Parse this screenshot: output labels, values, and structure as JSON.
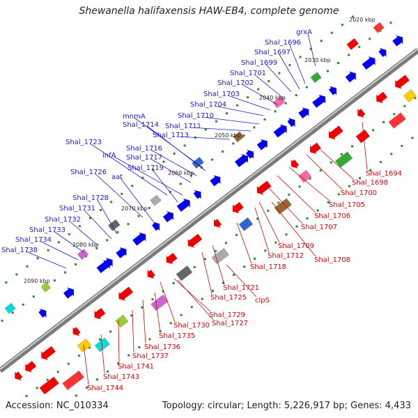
{
  "title": "Shewanella halifaxensis HAW-EB4, complete genome",
  "footer": {
    "accession": "Accession: NC_010334",
    "summary": "Topology: circular; Length: 5,226,917 bp; Genes: 4,433"
  },
  "colors": {
    "backbone": "#8c8c8c",
    "forward_label": "#1a1acc",
    "reverse_label": "#d60000",
    "tick": "#2a8a2a",
    "forward_gene": "#0000ee",
    "reverse_gene": "#ee0000"
  },
  "ticks": [
    "2020 kbp",
    "2030 kbp",
    "2040 kbp",
    "2050 kbp",
    "2060 kbp",
    "2070 kbp",
    "2080 kbp",
    "2090 kbp"
  ],
  "forward_labels": [
    "grxA",
    "Shal_1696",
    "Shal_1697",
    "Shal_1699",
    "Shal_1701",
    "Shal_1702",
    "Shal_1703",
    "Shal_1704",
    "mnmA",
    "Shal_1714",
    "Shal_1710",
    "Shal_1711",
    "Shal_1713",
    "Shal_1723",
    "Shal_1716",
    "infA",
    "Shal_1717",
    "Shal_1719",
    "Shal_1726",
    "aat",
    "Shal_1728",
    "Shal_1731",
    "Shal_1732",
    "Shal_1733",
    "Shal_1734",
    "Shal_1738"
  ],
  "reverse_labels": [
    "Shal_1694",
    "Shal_1698",
    "Shal_1700",
    "Shal_1705",
    "Shal_1706",
    "Shal_1707",
    "Shal_1709",
    "Shal_1712",
    "Shal_1708",
    "Shal_1718",
    "Shal_1721",
    "Shal_1725",
    "clpS",
    "Shal_1729",
    "Shal_1727",
    "Shal_1730",
    "Shal_1735",
    "Shal_1736",
    "Shal_1737",
    "Shal_1741",
    "Shal_1743",
    "Shal_1744"
  ]
}
